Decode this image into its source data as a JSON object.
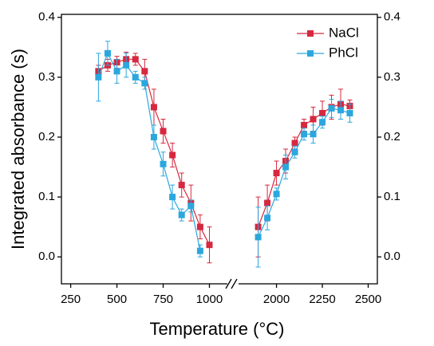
{
  "chart_data": {
    "type": "line",
    "x_label": "Temperature (°C)",
    "y_label": "Integrated absorbance (s)",
    "x_segments": [
      {
        "xlim": [
          200,
          1110
        ],
        "xticks": [
          250,
          500,
          750,
          1000
        ]
      },
      {
        "xlim": [
          1780,
          2550
        ],
        "xticks": [
          2000,
          2250,
          2500
        ]
      }
    ],
    "ylim": [
      -0.045,
      0.405
    ],
    "yticks": [
      {
        "value": 0,
        "label": "0.0"
      },
      0.1,
      0.2,
      0.3,
      0.4
    ],
    "legend": "top-right",
    "series": [
      {
        "name": "NaCl",
        "color": "#d6283f",
        "x": [
          400,
          450,
          500,
          550,
          600,
          650,
          700,
          750,
          800,
          850,
          900,
          950,
          1000,
          null,
          1900,
          1950,
          2000,
          2050,
          2100,
          2150,
          2200,
          2250,
          2300,
          2350,
          2400
        ],
        "values": [
          0.31,
          0.32,
          0.325,
          0.33,
          0.33,
          0.31,
          0.25,
          0.21,
          0.17,
          0.12,
          0.09,
          0.05,
          0.02,
          null,
          0.05,
          0.09,
          0.14,
          0.16,
          0.19,
          0.22,
          0.23,
          0.24,
          0.25,
          0.255,
          0.252
        ],
        "errors": [
          0.01,
          0.01,
          0.01,
          0.012,
          0.01,
          0.02,
          0.03,
          0.02,
          0.02,
          0.02,
          0.03,
          0.02,
          0.03,
          null,
          0.05,
          0.03,
          0.02,
          0.02,
          0.01,
          0.01,
          0.02,
          0.02,
          0.02,
          0.025,
          0.01
        ]
      },
      {
        "name": "PhCl",
        "color": "#2ba7de",
        "x": [
          400,
          450,
          500,
          550,
          600,
          650,
          700,
          750,
          800,
          850,
          900,
          950,
          null,
          1900,
          1950,
          2000,
          2050,
          2100,
          2150,
          2200,
          2250,
          2300,
          2350,
          2400
        ],
        "values": [
          0.3,
          0.34,
          0.31,
          0.32,
          0.3,
          0.29,
          0.2,
          0.155,
          0.1,
          0.07,
          0.085,
          0.01,
          null,
          0.033,
          0.065,
          0.105,
          0.15,
          0.175,
          0.205,
          0.205,
          0.225,
          0.248,
          0.245,
          0.24
        ],
        "errors": [
          0.04,
          0.02,
          0.02,
          0.02,
          0.01,
          0.01,
          0.02,
          0.02,
          0.02,
          0.01,
          0.01,
          0.01,
          null,
          0.05,
          0.02,
          0.01,
          0.02,
          0.01,
          0.01,
          0.015,
          0.01,
          0.015,
          0.015,
          0.015
        ]
      }
    ]
  }
}
